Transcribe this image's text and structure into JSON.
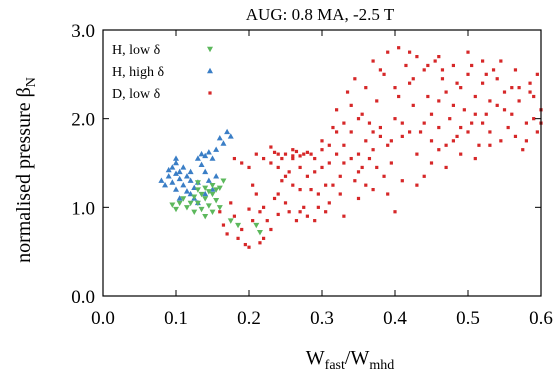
{
  "chart_data": {
    "type": "scatter",
    "title": "AUG: 0.8 MA, -2.5 T",
    "xlabel": {
      "main": "W",
      "sub1": "fast",
      "sep": "/W",
      "sub2": "mhd"
    },
    "ylabel": {
      "main": "normalised pressure β",
      "sub": "N"
    },
    "xlim": [
      0,
      0.6
    ],
    "ylim": [
      0,
      3.0
    ],
    "x_ticks": [
      "0.0",
      "0.1",
      "0.2",
      "0.3",
      "0.4",
      "0.5",
      "0.6"
    ],
    "y_ticks": [
      "0.0",
      "1.0",
      "2.0",
      "3.0"
    ],
    "legend_position": "top-left",
    "series": [
      {
        "name": "H,  low δ",
        "marker": "triangle-down",
        "color": "#5cb85c",
        "points": [
          [
            0.105,
            1.05
          ],
          [
            0.11,
            1.1
          ],
          [
            0.115,
            1.0
          ],
          [
            0.12,
            1.05
          ],
          [
            0.125,
            1.12
          ],
          [
            0.125,
            0.95
          ],
          [
            0.13,
            1.2
          ],
          [
            0.13,
            1.05
          ],
          [
            0.135,
            1.15
          ],
          [
            0.135,
            0.98
          ],
          [
            0.14,
            1.22
          ],
          [
            0.14,
            1.1
          ],
          [
            0.145,
            1.18
          ],
          [
            0.145,
            1.02
          ],
          [
            0.15,
            1.25
          ],
          [
            0.15,
            1.15
          ],
          [
            0.155,
            1.2
          ],
          [
            0.155,
            1.08
          ],
          [
            0.16,
            1.22
          ],
          [
            0.165,
            1.3
          ],
          [
            0.14,
            0.9
          ],
          [
            0.15,
            0.95
          ],
          [
            0.175,
            0.85
          ],
          [
            0.185,
            0.8
          ],
          [
            0.21,
            0.8
          ],
          [
            0.215,
            0.72
          ],
          [
            0.1,
            0.98
          ],
          [
            0.095,
            1.03
          ],
          [
            0.13,
            1.28
          ],
          [
            0.16,
            1.0
          ]
        ]
      },
      {
        "name": "H, high δ",
        "marker": "triangle-up",
        "color": "#3a7ec6",
        "points": [
          [
            0.08,
            1.3
          ],
          [
            0.085,
            1.25
          ],
          [
            0.09,
            1.35
          ],
          [
            0.095,
            1.45
          ],
          [
            0.095,
            1.28
          ],
          [
            0.1,
            1.5
          ],
          [
            0.1,
            1.38
          ],
          [
            0.1,
            1.2
          ],
          [
            0.105,
            1.4
          ],
          [
            0.105,
            1.32
          ],
          [
            0.11,
            1.45
          ],
          [
            0.11,
            1.25
          ],
          [
            0.115,
            1.35
          ],
          [
            0.115,
            1.18
          ],
          [
            0.12,
            1.3
          ],
          [
            0.12,
            1.15
          ],
          [
            0.125,
            1.22
          ],
          [
            0.125,
            1.1
          ],
          [
            0.13,
            1.28
          ],
          [
            0.13,
            1.55
          ],
          [
            0.135,
            1.6
          ],
          [
            0.135,
            1.48
          ],
          [
            0.14,
            1.58
          ],
          [
            0.145,
            1.62
          ],
          [
            0.15,
            1.55
          ],
          [
            0.155,
            1.65
          ],
          [
            0.16,
            1.78
          ],
          [
            0.165,
            1.72
          ],
          [
            0.17,
            1.85
          ],
          [
            0.175,
            1.8
          ],
          [
            0.14,
            1.4
          ],
          [
            0.145,
            1.3
          ],
          [
            0.15,
            1.2
          ],
          [
            0.155,
            1.35
          ],
          [
            0.13,
            1.05
          ],
          [
            0.14,
            1.15
          ],
          [
            0.09,
            1.42
          ],
          [
            0.1,
            1.55
          ],
          [
            0.105,
            1.1
          ],
          [
            0.12,
            1.4
          ]
        ]
      },
      {
        "name": "D,  low δ",
        "marker": "square",
        "color": "#d62728",
        "points": [
          [
            0.16,
            0.95
          ],
          [
            0.165,
            0.8
          ],
          [
            0.17,
            0.7
          ],
          [
            0.175,
            1.05
          ],
          [
            0.18,
            0.9
          ],
          [
            0.185,
            0.65
          ],
          [
            0.19,
            0.75
          ],
          [
            0.195,
            0.58
          ],
          [
            0.2,
            0.55
          ],
          [
            0.2,
            0.98
          ],
          [
            0.205,
            1.25
          ],
          [
            0.21,
            1.15
          ],
          [
            0.215,
            0.95
          ],
          [
            0.22,
            1.0
          ],
          [
            0.225,
            0.85
          ],
          [
            0.23,
            0.75
          ],
          [
            0.235,
            1.1
          ],
          [
            0.24,
            0.92
          ],
          [
            0.245,
            1.3
          ],
          [
            0.25,
            1.05
          ],
          [
            0.255,
            0.95
          ],
          [
            0.26,
            1.55
          ],
          [
            0.265,
            0.85
          ],
          [
            0.27,
            1.2
          ],
          [
            0.275,
            1.0
          ],
          [
            0.28,
            0.9
          ],
          [
            0.285,
            1.6
          ],
          [
            0.29,
            1.4
          ],
          [
            0.295,
            1.15
          ],
          [
            0.3,
            1.75
          ],
          [
            0.305,
            1.25
          ],
          [
            0.31,
            1.5
          ],
          [
            0.315,
            1.9
          ],
          [
            0.32,
            2.1
          ],
          [
            0.325,
            1.35
          ],
          [
            0.33,
            1.7
          ],
          [
            0.335,
            2.3
          ],
          [
            0.34,
            1.85
          ],
          [
            0.345,
            2.45
          ],
          [
            0.35,
            1.6
          ],
          [
            0.355,
            2.05
          ],
          [
            0.36,
            1.25
          ],
          [
            0.365,
            1.95
          ],
          [
            0.37,
            2.65
          ],
          [
            0.375,
            2.2
          ],
          [
            0.38,
            1.8
          ],
          [
            0.385,
            2.5
          ],
          [
            0.39,
            2.75
          ],
          [
            0.395,
            1.75
          ],
          [
            0.4,
            2.35
          ],
          [
            0.405,
            2.8
          ],
          [
            0.41,
            1.95
          ],
          [
            0.415,
            2.6
          ],
          [
            0.42,
            2.4
          ],
          [
            0.425,
            2.15
          ],
          [
            0.43,
            2.7
          ],
          [
            0.435,
            1.85
          ],
          [
            0.44,
            2.55
          ],
          [
            0.445,
            2.25
          ],
          [
            0.45,
            2.05
          ],
          [
            0.455,
            2.65
          ],
          [
            0.46,
            1.9
          ],
          [
            0.465,
            2.45
          ],
          [
            0.47,
            2.3
          ],
          [
            0.475,
            2.0
          ],
          [
            0.48,
            2.6
          ],
          [
            0.485,
            1.8
          ],
          [
            0.49,
            2.35
          ],
          [
            0.495,
            2.1
          ],
          [
            0.5,
            2.5
          ],
          [
            0.505,
            1.95
          ],
          [
            0.51,
            2.25
          ],
          [
            0.515,
            1.7
          ],
          [
            0.52,
            2.4
          ],
          [
            0.525,
            2.05
          ],
          [
            0.53,
            1.85
          ],
          [
            0.535,
            2.55
          ],
          [
            0.54,
            2.15
          ],
          [
            0.545,
            1.75
          ],
          [
            0.55,
            2.3
          ],
          [
            0.555,
            1.9
          ],
          [
            0.56,
            2.05
          ],
          [
            0.565,
            1.8
          ],
          [
            0.57,
            2.2
          ],
          [
            0.575,
            1.65
          ],
          [
            0.58,
            1.95
          ],
          [
            0.585,
            2.4
          ],
          [
            0.59,
            2.0
          ],
          [
            0.595,
            1.85
          ],
          [
            0.6,
            2.1
          ],
          [
            0.25,
            1.6
          ],
          [
            0.26,
            1.65
          ],
          [
            0.27,
            1.58
          ],
          [
            0.28,
            1.62
          ],
          [
            0.24,
            1.45
          ],
          [
            0.22,
            1.55
          ],
          [
            0.23,
            1.68
          ],
          [
            0.255,
            1.4
          ],
          [
            0.3,
            1.45
          ],
          [
            0.32,
            1.6
          ],
          [
            0.34,
            1.55
          ],
          [
            0.36,
            1.75
          ],
          [
            0.38,
            1.9
          ],
          [
            0.33,
            1.95
          ],
          [
            0.35,
            2.0
          ],
          [
            0.37,
            1.85
          ],
          [
            0.4,
            2.0
          ],
          [
            0.42,
            1.85
          ],
          [
            0.44,
            1.95
          ],
          [
            0.46,
            2.2
          ],
          [
            0.48,
            2.15
          ],
          [
            0.5,
            1.85
          ],
          [
            0.52,
            1.95
          ],
          [
            0.54,
            2.45
          ],
          [
            0.56,
            2.35
          ],
          [
            0.58,
            1.75
          ],
          [
            0.27,
            0.95
          ],
          [
            0.29,
            0.85
          ],
          [
            0.31,
            1.05
          ],
          [
            0.33,
            0.9
          ],
          [
            0.35,
            1.1
          ],
          [
            0.37,
            1.2
          ],
          [
            0.39,
            1.15
          ],
          [
            0.41,
            1.3
          ],
          [
            0.43,
            1.25
          ],
          [
            0.45,
            1.5
          ],
          [
            0.47,
            1.45
          ],
          [
            0.49,
            1.6
          ],
          [
            0.51,
            1.55
          ],
          [
            0.53,
            1.7
          ],
          [
            0.44,
            1.35
          ],
          [
            0.46,
            1.65
          ],
          [
            0.48,
            1.75
          ],
          [
            0.52,
            2.65
          ],
          [
            0.5,
            2.75
          ],
          [
            0.46,
            2.7
          ],
          [
            0.42,
            2.75
          ],
          [
            0.38,
            2.55
          ],
          [
            0.36,
            2.35
          ],
          [
            0.34,
            2.15
          ],
          [
            0.32,
            1.85
          ],
          [
            0.3,
            1.65
          ],
          [
            0.28,
            1.35
          ],
          [
            0.26,
            1.25
          ],
          [
            0.24,
            1.15
          ],
          [
            0.22,
            0.65
          ],
          [
            0.205,
            0.85
          ],
          [
            0.215,
            0.6
          ],
          [
            0.18,
            1.55
          ],
          [
            0.19,
            1.5
          ],
          [
            0.2,
            1.45
          ],
          [
            0.21,
            1.6
          ],
          [
            0.23,
            1.5
          ],
          [
            0.25,
            1.35
          ],
          [
            0.27,
            1.45
          ],
          [
            0.29,
            1.55
          ],
          [
            0.31,
            1.7
          ],
          [
            0.33,
            1.5
          ],
          [
            0.35,
            1.4
          ],
          [
            0.37,
            1.65
          ],
          [
            0.39,
            1.7
          ],
          [
            0.41,
            1.8
          ],
          [
            0.43,
            1.6
          ],
          [
            0.45,
            1.75
          ],
          [
            0.47,
            1.7
          ],
          [
            0.49,
            1.9
          ],
          [
            0.51,
            2.05
          ],
          [
            0.53,
            2.2
          ],
          [
            0.55,
            2.1
          ],
          [
            0.57,
            2.35
          ],
          [
            0.59,
            2.25
          ],
          [
            0.4,
            0.95
          ],
          [
            0.405,
            2.25
          ],
          [
            0.425,
            2.45
          ],
          [
            0.445,
            2.6
          ],
          [
            0.465,
            2.55
          ],
          [
            0.485,
            2.4
          ],
          [
            0.505,
            2.6
          ],
          [
            0.525,
            2.5
          ],
          [
            0.545,
            2.65
          ],
          [
            0.565,
            2.55
          ],
          [
            0.585,
            2.3
          ],
          [
            0.6,
            1.95
          ],
          [
            0.595,
            2.5
          ],
          [
            0.285,
            1.2
          ],
          [
            0.295,
            1.0
          ],
          [
            0.305,
            0.95
          ],
          [
            0.315,
            1.25
          ],
          [
            0.325,
            1.15
          ],
          [
            0.345,
            1.3
          ],
          [
            0.355,
            1.45
          ],
          [
            0.365,
            1.55
          ],
          [
            0.375,
            1.45
          ],
          [
            0.385,
            1.35
          ],
          [
            0.395,
            1.5
          ],
          [
            0.24,
            1.6
          ],
          [
            0.245,
            1.55
          ],
          [
            0.235,
            1.62
          ],
          [
            0.26,
            1.58
          ],
          [
            0.265,
            1.63
          ],
          [
            0.275,
            1.6
          ]
        ]
      }
    ]
  }
}
